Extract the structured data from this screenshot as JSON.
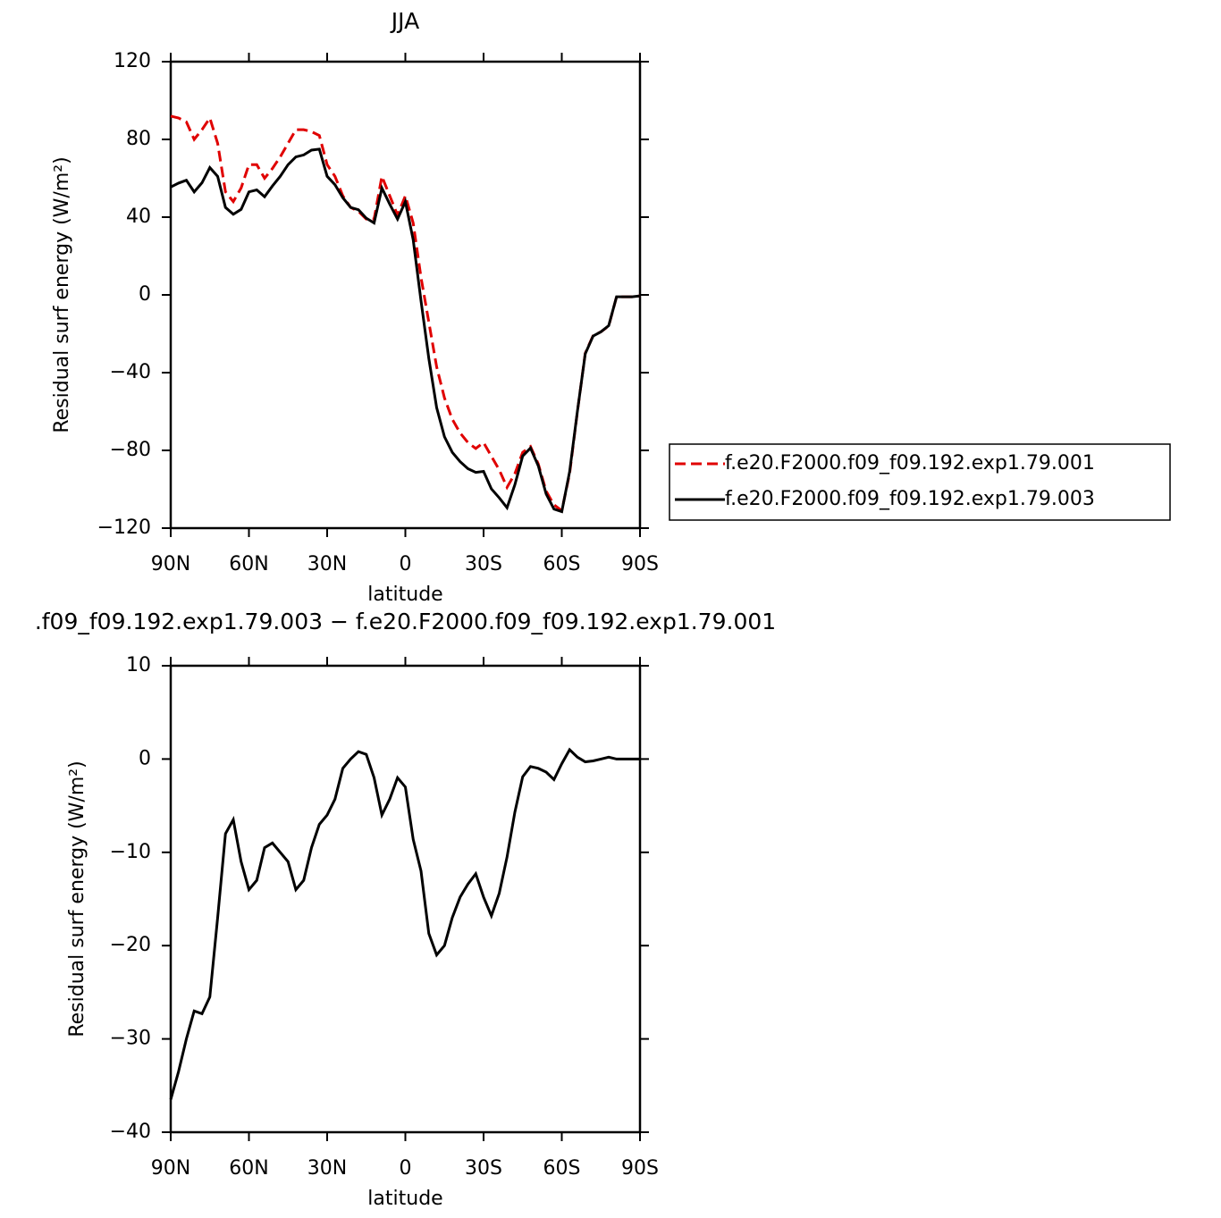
{
  "chart_data": [
    {
      "type": "line",
      "title": "JJA",
      "xlabel": "latitude",
      "ylabel": "Residual surf energy (W/m²)",
      "x": [
        90,
        87,
        84,
        81,
        78,
        75,
        72,
        69,
        66,
        63,
        60,
        57,
        54,
        51,
        48,
        45,
        42,
        39,
        36,
        33,
        30,
        27,
        24,
        21,
        18,
        15,
        12,
        9,
        6,
        3,
        0,
        -3,
        -6,
        -9,
        -12,
        -15,
        -18,
        -21,
        -24,
        -27,
        -30,
        -33,
        -36,
        -39,
        -42,
        -45,
        -48,
        -51,
        -54,
        -57,
        -60,
        -63,
        -66,
        -69,
        -72,
        -75,
        -78,
        -81,
        -84,
        -87,
        -90
      ],
      "series": [
        {
          "name": "f.e20.F2000.f09_f09.192.exp1.79.001",
          "color": "#e00000",
          "linestyle": "dashed",
          "values": [
            92,
            91,
            89,
            80,
            85,
            91,
            78,
            53,
            48,
            55,
            67,
            67,
            60,
            65,
            71,
            78,
            85,
            85,
            84,
            82,
            67,
            61,
            51,
            45,
            43,
            39,
            39,
            61,
            51,
            41,
            51,
            37,
            9,
            -14,
            -37,
            -53,
            -64,
            -71,
            -76,
            -79,
            -76,
            -83,
            -90,
            -99,
            -92,
            -81,
            -78,
            -87,
            -101,
            -108,
            -111,
            -92,
            -60,
            -30,
            -21,
            -19,
            -16,
            -1,
            -1,
            -1,
            -0.5
          ]
        },
        {
          "name": "f.e20.F2000.f09_f09.192.exp1.79.003",
          "color": "#000000",
          "linestyle": "solid",
          "values": [
            55.5,
            57.5,
            59,
            53,
            57.7,
            65.5,
            61,
            45,
            41.5,
            44,
            53,
            54,
            50.5,
            56,
            61,
            67,
            71,
            72,
            74.5,
            75,
            61,
            56.7,
            50,
            45,
            43.8,
            39.5,
            37,
            55,
            46.7,
            39,
            48,
            28.4,
            -3,
            -32.7,
            -58,
            -73,
            -81,
            -85.8,
            -89.4,
            -91.3,
            -90.8,
            -99.8,
            -104.4,
            -109.5,
            -97.7,
            -82.9,
            -78.8,
            -88,
            -102.4,
            -110.2,
            -111.5,
            -91,
            -59.8,
            -30.3,
            -21.2,
            -19,
            -15.8,
            -1,
            -1,
            -1,
            -0.5
          ]
        }
      ],
      "xlim": [
        90,
        -90
      ],
      "xticks": [
        {
          "value": 90,
          "label": "90N"
        },
        {
          "value": 60,
          "label": "60N"
        },
        {
          "value": 30,
          "label": "30N"
        },
        0,
        {
          "value": -30,
          "label": "30S"
        },
        {
          "value": -60,
          "label": "60S"
        },
        {
          "value": -90,
          "label": "90S"
        }
      ],
      "ylim": [
        -120,
        120
      ],
      "yticks": [
        {
          "value": -120,
          "label": "−120"
        },
        {
          "value": -80,
          "label": "−80"
        },
        {
          "value": -40,
          "label": "−40"
        },
        0,
        40,
        80,
        120
      ],
      "legend": "right"
    },
    {
      "type": "line",
      "title": ".f09_f09.192.exp1.79.003 − f.e20.F2000.f09_f09.192.exp1.79.001",
      "xlabel": "latitude",
      "ylabel": "Residual surf energy (W/m²)",
      "x": [
        90,
        87,
        84,
        81,
        78,
        75,
        72,
        69,
        66,
        63,
        60,
        57,
        54,
        51,
        48,
        45,
        42,
        39,
        36,
        33,
        30,
        27,
        24,
        21,
        18,
        15,
        12,
        9,
        6,
        3,
        0,
        -3,
        -6,
        -9,
        -12,
        -15,
        -18,
        -21,
        -24,
        -27,
        -30,
        -33,
        -36,
        -39,
        -42,
        -45,
        -48,
        -51,
        -54,
        -57,
        -60,
        -63,
        -66,
        -69,
        -72,
        -75,
        -78,
        -81,
        -84,
        -87,
        -90
      ],
      "series": [
        {
          "color": "#000000",
          "linestyle": "solid",
          "values": [
            -36.5,
            -33.5,
            -30,
            -27,
            -27.3,
            -25.5,
            -17,
            -8,
            -6.5,
            -11,
            -14,
            -13,
            -9.5,
            -9,
            -10,
            -11,
            -14,
            -13,
            -9.5,
            -7,
            -6,
            -4.3,
            -1,
            0,
            0.8,
            0.5,
            -2,
            -6,
            -4.3,
            -2,
            -3,
            -8.6,
            -12,
            -18.7,
            -21,
            -20,
            -17,
            -14.8,
            -13.4,
            -12.3,
            -14.8,
            -16.8,
            -14.4,
            -10.5,
            -5.7,
            -1.9,
            -0.8,
            -1,
            -1.4,
            -2.2,
            -0.5,
            1,
            0.2,
            -0.3,
            -0.2,
            0,
            0.2,
            0,
            0,
            0,
            0
          ]
        }
      ],
      "xlim": [
        90,
        -90
      ],
      "xticks": [
        {
          "value": 90,
          "label": "90N"
        },
        {
          "value": 60,
          "label": "60N"
        },
        {
          "value": 30,
          "label": "30N"
        },
        0,
        {
          "value": -30,
          "label": "30S"
        },
        {
          "value": -60,
          "label": "60S"
        },
        {
          "value": -90,
          "label": "90S"
        }
      ],
      "ylim": [
        -40,
        10
      ],
      "yticks": [
        {
          "value": -40,
          "label": "−40"
        },
        {
          "value": -30,
          "label": "−30"
        },
        {
          "value": -20,
          "label": "−20"
        },
        {
          "value": -10,
          "label": "−10"
        },
        0,
        10
      ]
    }
  ]
}
